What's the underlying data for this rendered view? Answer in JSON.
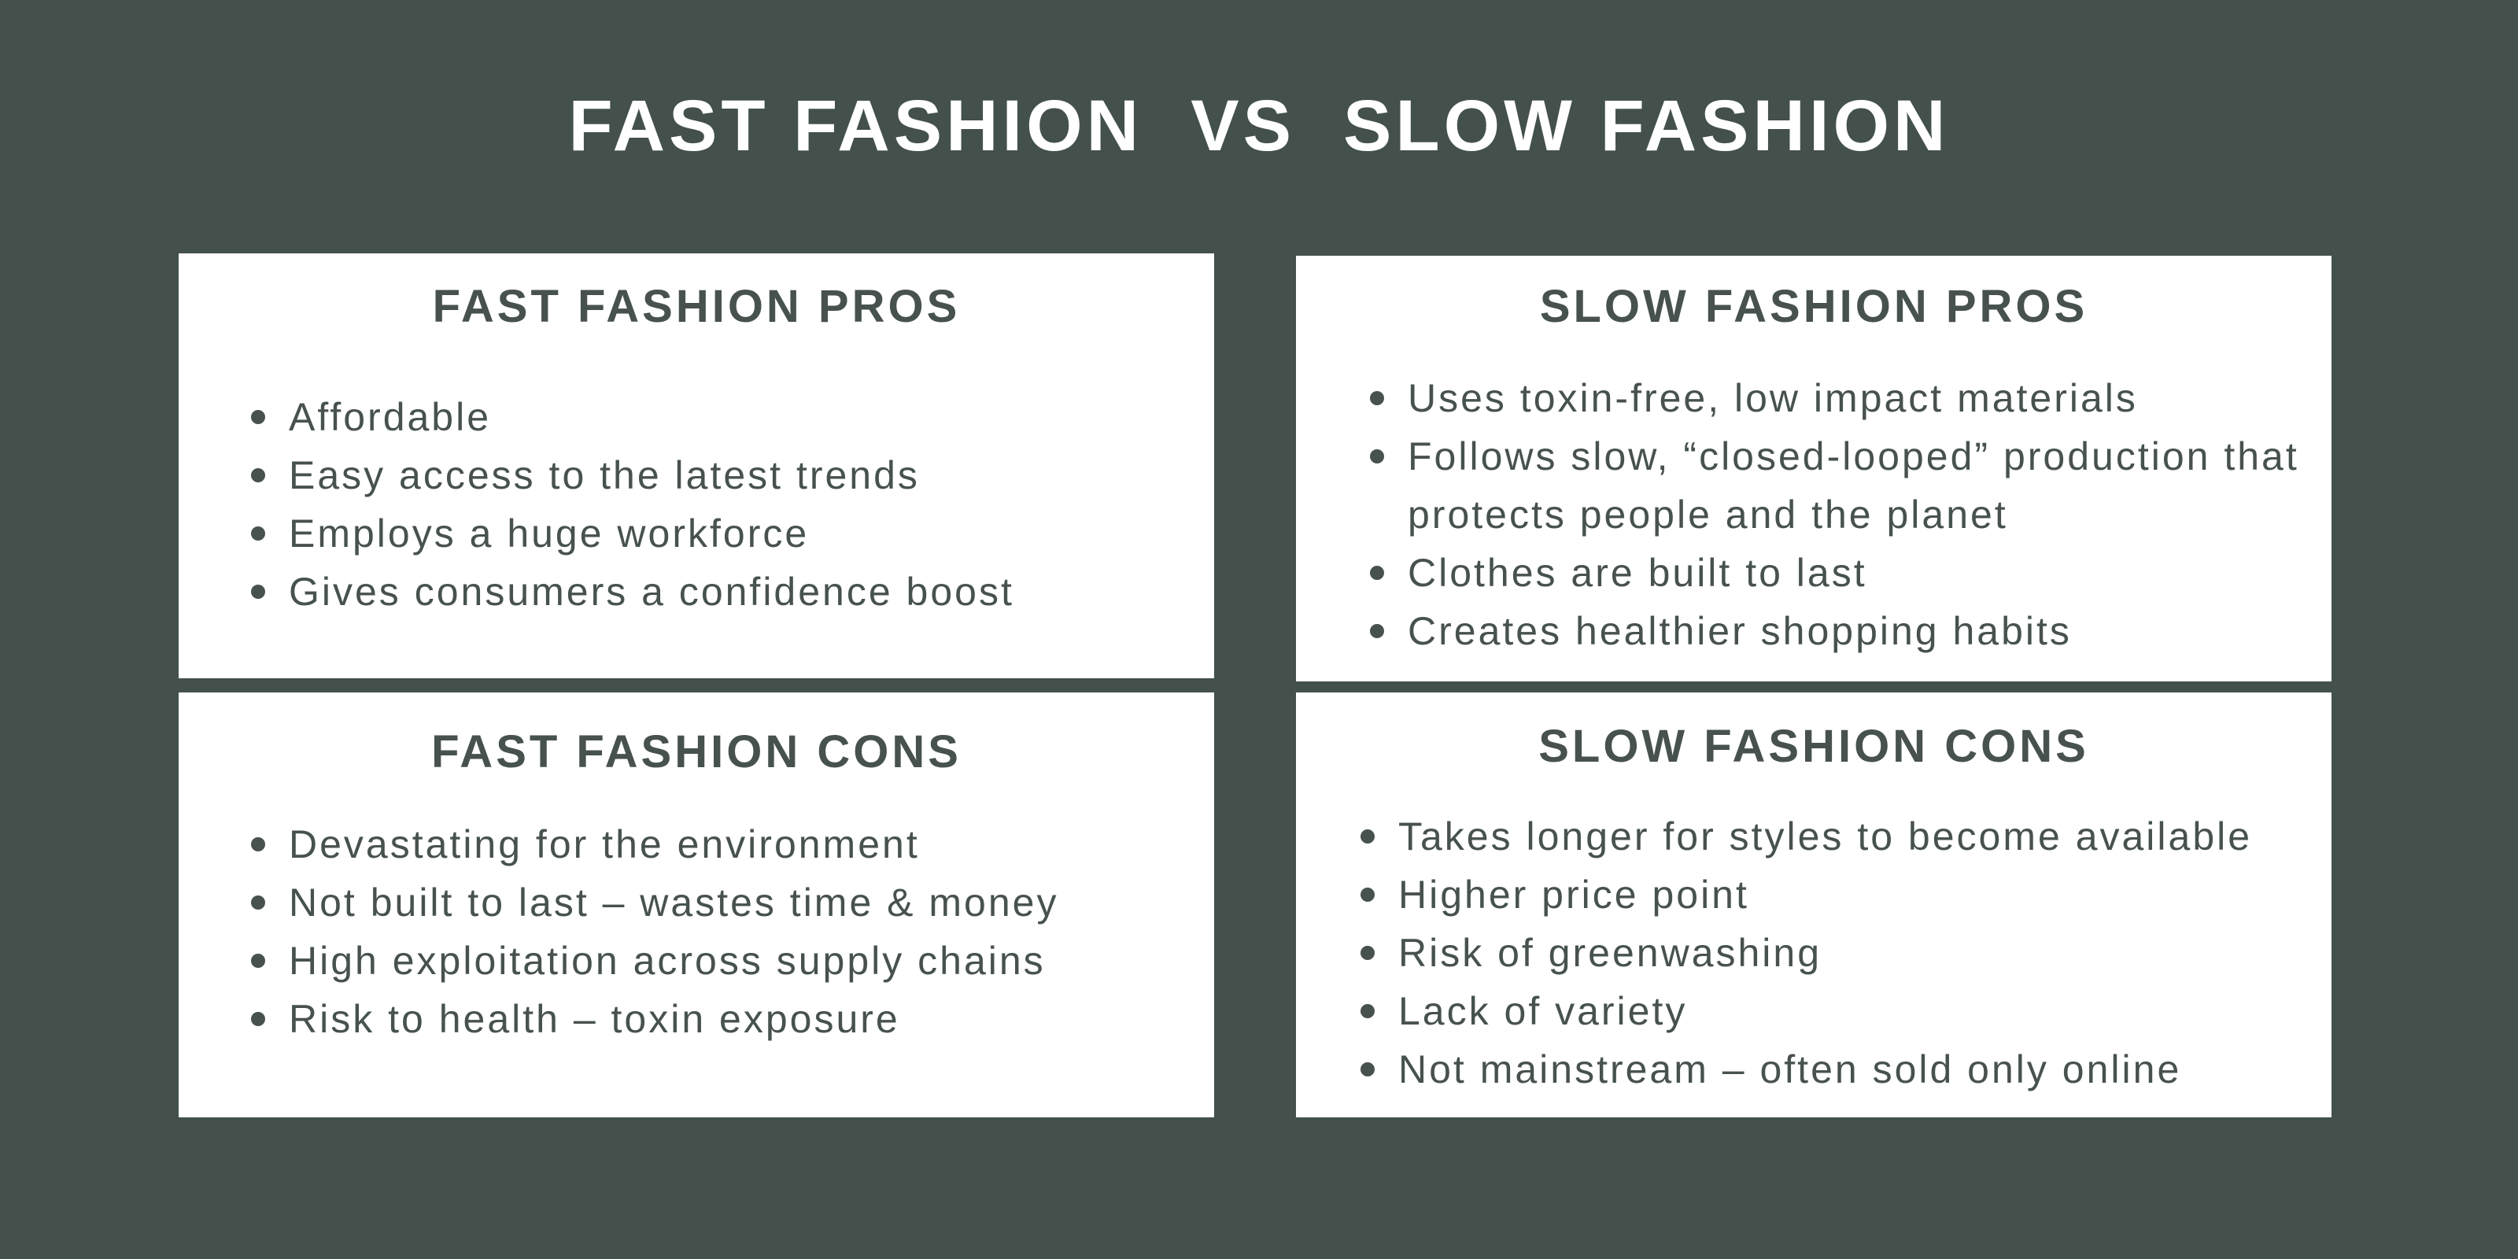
{
  "title": "FAST FASHION  VS  SLOW FASHION",
  "colors": {
    "background": "#43504b",
    "card": "#ffffff",
    "text": "#47524e"
  },
  "cards": [
    {
      "heading": "FAST FASHION PROS",
      "items": [
        "Affordable",
        "Easy access to the latest trends",
        "Employs a huge workforce",
        "Gives consumers a confidence boost"
      ]
    },
    {
      "heading": "SLOW FASHION PROS",
      "items": [
        "Uses toxin-free, low impact materials",
        "Follows slow, “closed-looped” production that protects people and the planet",
        "Clothes are built to last",
        "Creates healthier shopping habits"
      ]
    },
    {
      "heading": "FAST FASHION CONS",
      "items": [
        "Devastating for the environment",
        "Not built to last – wastes time & money",
        "High exploitation across supply chains",
        "Risk to health – toxin exposure"
      ]
    },
    {
      "heading": "SLOW FASHION CONS",
      "items": [
        "Takes longer for styles to become available",
        "Higher price point",
        "Risk of greenwashing",
        "Lack of variety",
        "Not mainstream – often sold only online"
      ]
    }
  ]
}
